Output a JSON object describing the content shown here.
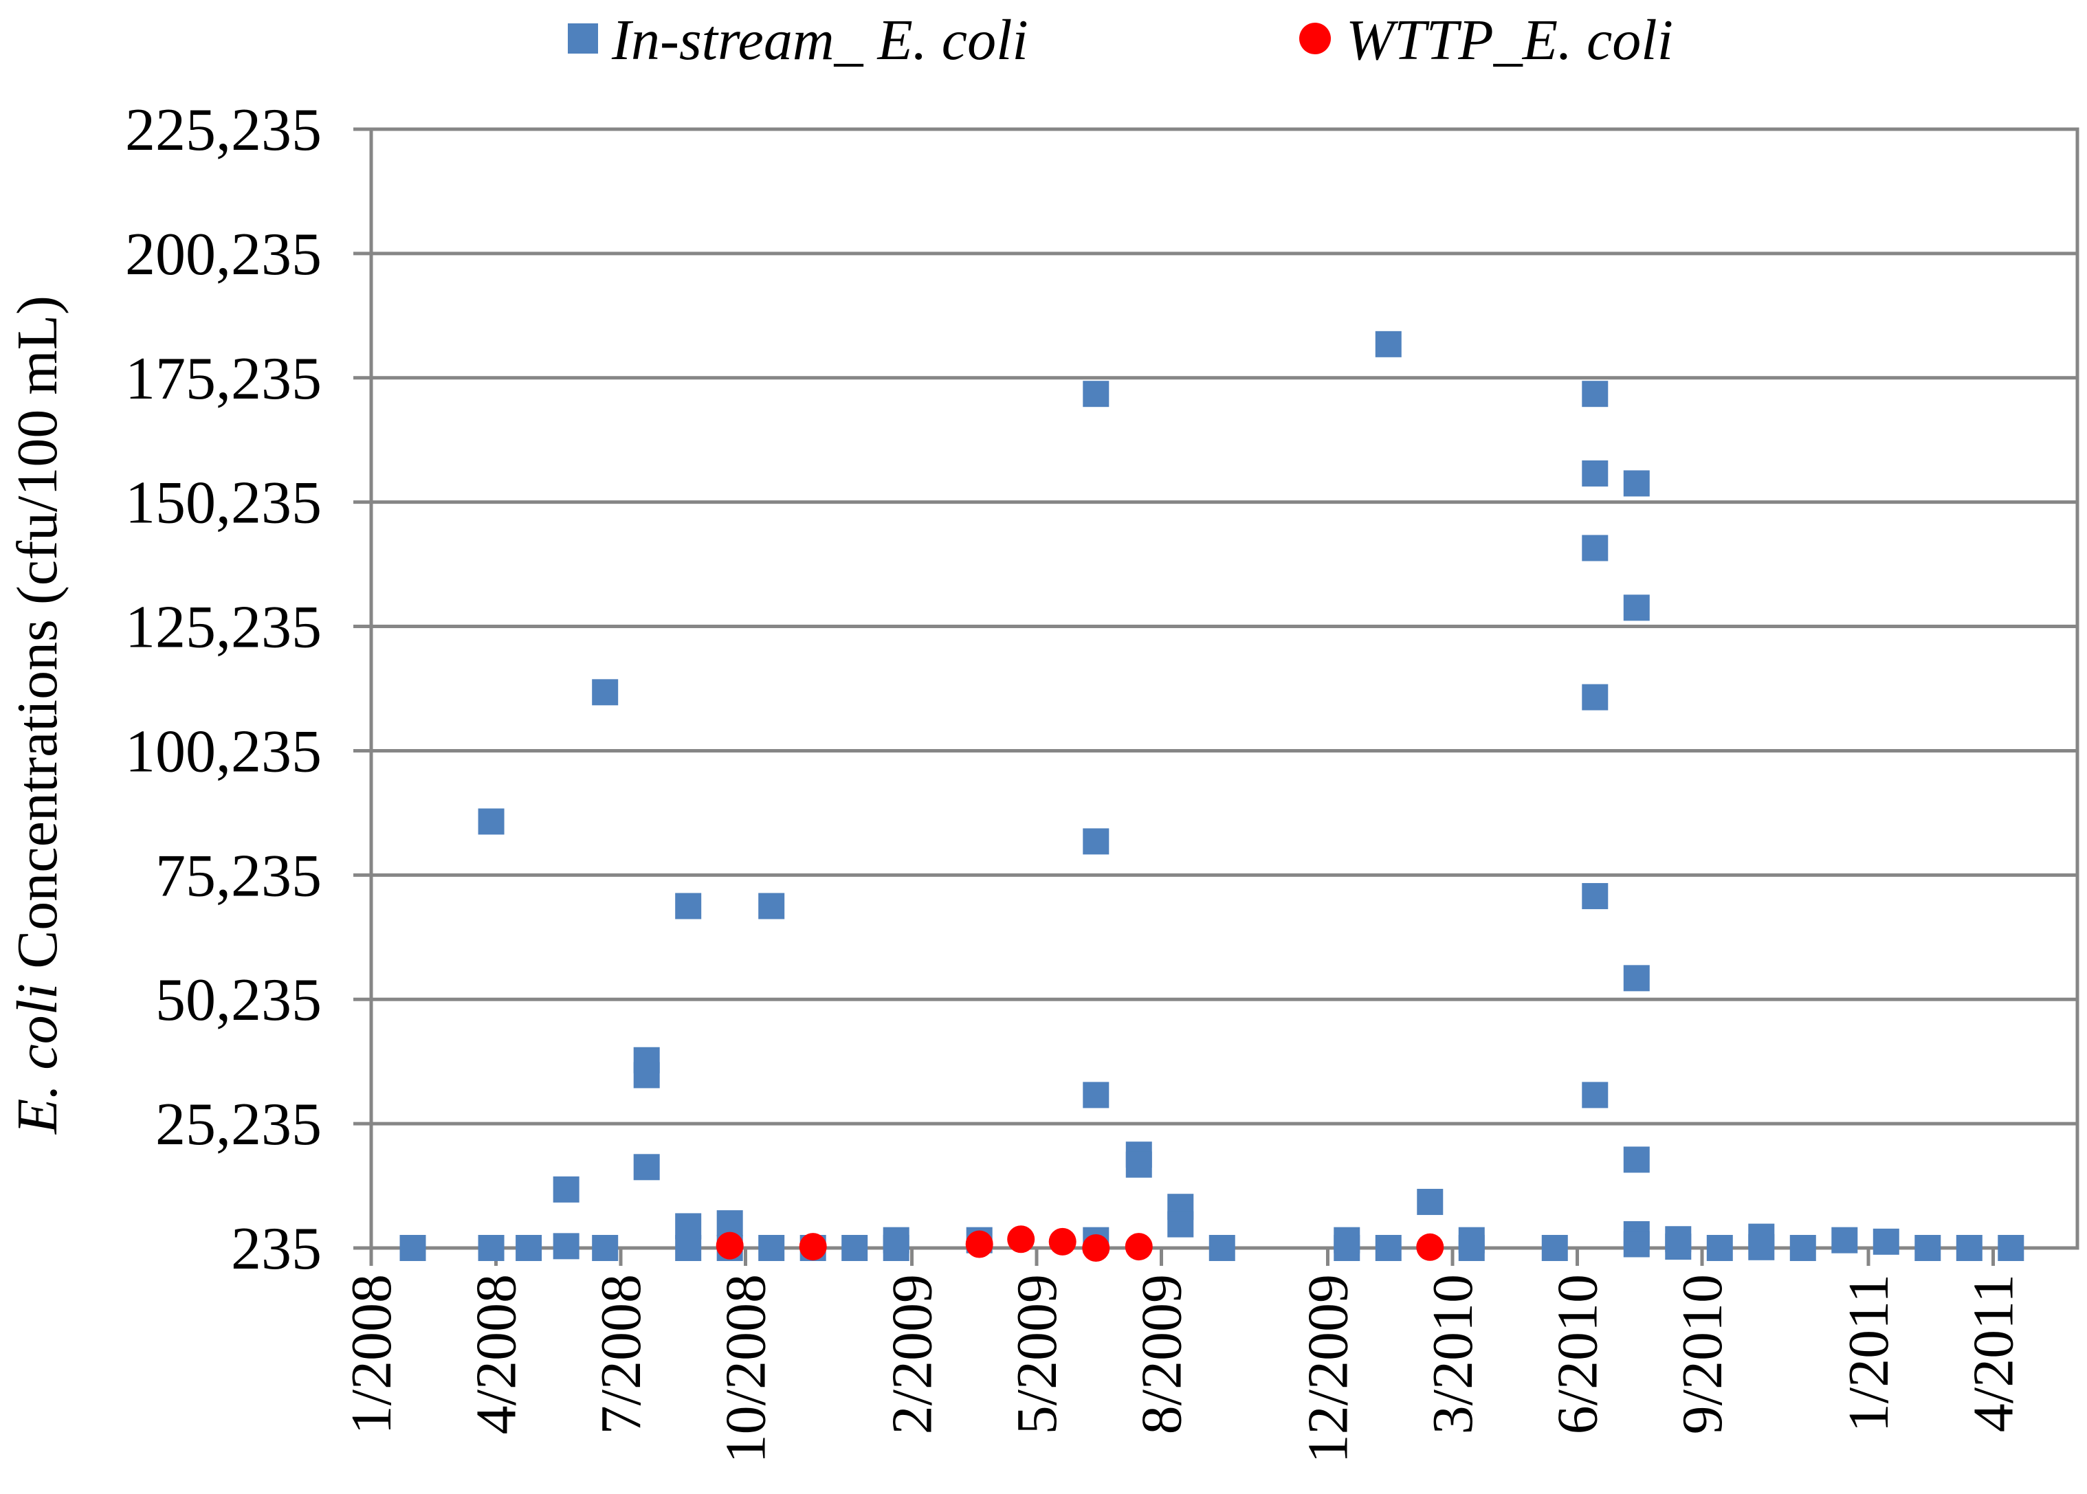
{
  "chart_data": {
    "type": "scatter",
    "title": "",
    "xlabel": "",
    "ylabel": {
      "italic": "E. coli",
      "rest": " Concentrations (cfu/100 mL)"
    },
    "ylim": [
      235,
      225235
    ],
    "y_ticks": [
      "235",
      "25,235",
      "50,235",
      "75,235",
      "100,235",
      "125,235",
      "150,235",
      "175,235",
      "200,235",
      "225,235"
    ],
    "x_ticks": [
      "1/2008",
      "4/2008",
      "7/2008",
      "10/2008",
      "2/2009",
      "5/2009",
      "8/2009",
      "12/2009",
      "3/2010",
      "6/2010",
      "9/2010",
      "1/2011",
      "4/2011"
    ],
    "grid": true,
    "legend_position": "top",
    "colors": {
      "in_stream": "#4F81BD",
      "in_stream_overlap": "#3F6A9E",
      "wttp": "#FF0000",
      "grid": "#868686"
    },
    "series": [
      {
        "name": "In-stream_ E. coli",
        "marker": "square",
        "points": [
          [
            "2008-02-01",
            235
          ],
          [
            "2008-03-28",
            86000
          ],
          [
            "2008-03-28",
            235
          ],
          [
            "2008-04-25",
            235
          ],
          [
            "2008-05-22",
            12000
          ],
          [
            "2008-05-22",
            600
          ],
          [
            "2008-06-20",
            112000
          ],
          [
            "2008-06-20",
            235
          ],
          [
            "2008-07-20",
            38000
          ],
          [
            "2008-07-20",
            35000
          ],
          [
            "2008-07-20",
            16500
          ],
          [
            "2008-08-20",
            69000
          ],
          [
            "2008-08-20",
            4600
          ],
          [
            "2008-08-20",
            235
          ],
          [
            "2008-09-20",
            5200
          ],
          [
            "2008-09-20",
            235
          ],
          [
            "2008-10-20",
            69000
          ],
          [
            "2008-10-20",
            235
          ],
          [
            "2008-11-20",
            235
          ],
          [
            "2008-12-20",
            235
          ],
          [
            "2009-01-20",
            1800
          ],
          [
            "2009-01-20",
            235
          ],
          [
            "2009-03-20",
            1800
          ],
          [
            "2009-06-14",
            172000
          ],
          [
            "2009-06-14",
            82000
          ],
          [
            "2009-06-14",
            31000
          ],
          [
            "2009-06-14",
            1800
          ],
          [
            "2009-07-15",
            19000
          ],
          [
            "2009-07-15",
            17000
          ],
          [
            "2009-08-15",
            8500
          ],
          [
            "2009-08-15",
            5000
          ],
          [
            "2009-09-15",
            235
          ],
          [
            "2009-12-15",
            1800
          ],
          [
            "2009-12-15",
            235
          ],
          [
            "2010-01-15",
            182000
          ],
          [
            "2010-01-15",
            235
          ],
          [
            "2010-02-15",
            9500
          ],
          [
            "2010-03-15",
            1800
          ],
          [
            "2010-03-15",
            235
          ],
          [
            "2010-05-15",
            235
          ],
          [
            "2010-06-14",
            172000
          ],
          [
            "2010-06-14",
            156000
          ],
          [
            "2010-06-14",
            141000
          ],
          [
            "2010-06-14",
            111000
          ],
          [
            "2010-06-14",
            71000
          ],
          [
            "2010-06-14",
            31000
          ],
          [
            "2010-07-14",
            154000
          ],
          [
            "2010-07-14",
            129000
          ],
          [
            "2010-07-14",
            54500
          ],
          [
            "2010-07-14",
            18000
          ],
          [
            "2010-07-14",
            3000
          ],
          [
            "2010-07-14",
            1000
          ],
          [
            "2010-08-14",
            2000
          ],
          [
            "2010-08-14",
            500
          ],
          [
            "2010-09-14",
            235
          ],
          [
            "2010-10-14",
            2500
          ],
          [
            "2010-10-14",
            400
          ],
          [
            "2010-11-14",
            235
          ],
          [
            "2010-12-14",
            1800
          ],
          [
            "2011-01-14",
            1500
          ],
          [
            "2011-02-14",
            235
          ],
          [
            "2011-03-14",
            235
          ],
          [
            "2011-04-14",
            235
          ]
        ]
      },
      {
        "name": "WTTP_E. coli",
        "marker": "circle",
        "points": [
          [
            "2008-09-20",
            700
          ],
          [
            "2008-11-20",
            500
          ],
          [
            "2009-03-20",
            1000
          ],
          [
            "2009-04-20",
            2000
          ],
          [
            "2009-05-20",
            1500
          ],
          [
            "2009-06-14",
            235
          ],
          [
            "2009-07-15",
            500
          ],
          [
            "2010-02-15",
            400
          ]
        ]
      }
    ]
  }
}
